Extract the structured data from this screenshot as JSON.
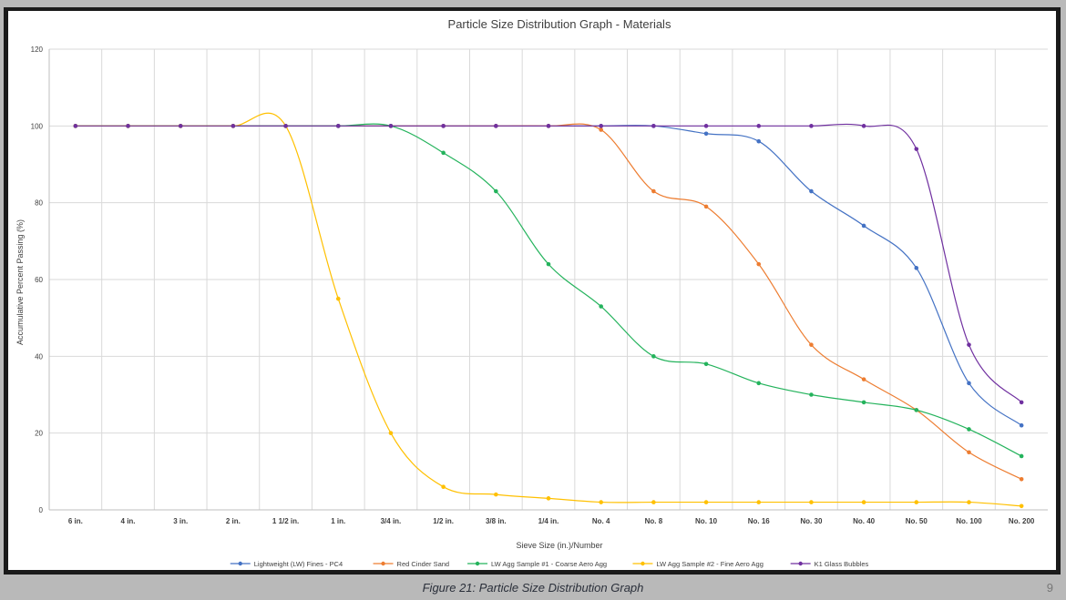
{
  "caption": "Figure 21: Particle Size Distribution Graph",
  "page_number": "9",
  "chart_data": {
    "type": "line",
    "title": "Particle Size Distribution Graph - Materials",
    "xlabel": "Sieve Size (in.)/Number",
    "ylabel": "Accumulative Percent Passing (%)",
    "ylim": [
      0,
      120
    ],
    "yticks": [
      "0",
      "20",
      "40",
      "60",
      "80",
      "100",
      "120"
    ],
    "grid": true,
    "legend_position": "bottom",
    "categories": [
      "6 in.",
      "4 in.",
      "3 in.",
      "2 in.",
      "1 1/2 in.",
      "1 in.",
      "3/4 in.",
      "1/2 in.",
      "3/8 in.",
      "1/4 in.",
      "No. 4",
      "No. 8",
      "No. 10",
      "No. 16",
      "No. 30",
      "No. 40",
      "No. 50",
      "No. 100",
      "No. 200"
    ],
    "series": [
      {
        "name": "Lightweight (LW) Fines - PC4",
        "color": "#4472c4",
        "values": [
          100,
          100,
          100,
          100,
          100,
          100,
          100,
          100,
          100,
          100,
          100,
          100,
          98,
          96,
          83,
          74,
          63,
          33,
          22
        ]
      },
      {
        "name": "Red Cinder Sand",
        "color": "#ed7d31",
        "values": [
          100,
          100,
          100,
          100,
          100,
          100,
          100,
          100,
          100,
          100,
          99,
          83,
          79,
          64,
          43,
          34,
          26,
          15,
          8
        ]
      },
      {
        "name": "LW Agg Sample #1 - Coarse Aero Agg",
        "color": "#24b35c",
        "values": [
          100,
          100,
          100,
          100,
          100,
          100,
          100,
          93,
          83,
          64,
          53,
          40,
          38,
          33,
          30,
          28,
          26,
          21,
          14
        ]
      },
      {
        "name": "LW Agg Sample #2 - Fine Aero Agg",
        "color": "#ffc000",
        "values": [
          100,
          100,
          100,
          100,
          100,
          55,
          20,
          6,
          4,
          3,
          2,
          2,
          2,
          2,
          2,
          2,
          2,
          2,
          1
        ]
      },
      {
        "name": "K1 Glass Bubbles",
        "color": "#7030a0",
        "values": [
          100,
          100,
          100,
          100,
          100,
          100,
          100,
          100,
          100,
          100,
          100,
          100,
          100,
          100,
          100,
          100,
          94,
          43,
          28
        ]
      }
    ]
  }
}
